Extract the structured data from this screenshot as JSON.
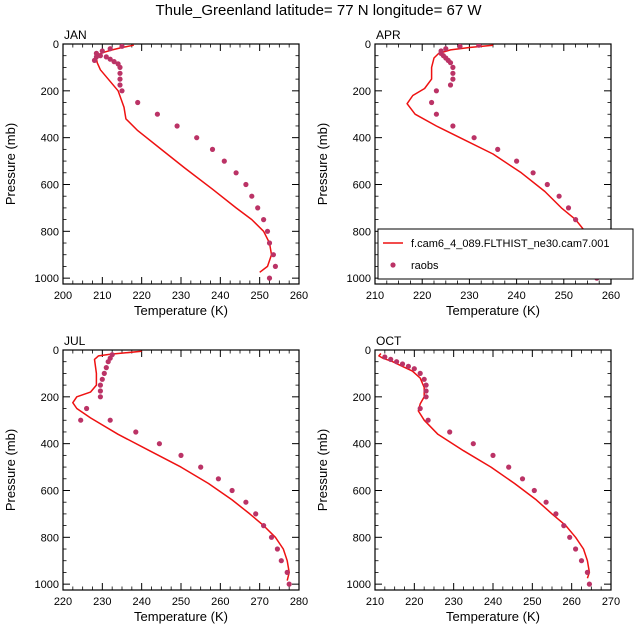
{
  "title": "Thule_Greenland  latitude= 77 N longitude= 67 W",
  "colors": {
    "model": "#ee1111",
    "obs": "#bb3366",
    "axis": "#000000"
  },
  "legend": {
    "panel": "APR",
    "placement": "bottom-right",
    "entries": [
      {
        "label": "f.cam6_4_089.FLTHIST_ne30.cam7.001",
        "kind": "line",
        "color": "#ee1111"
      },
      {
        "label": "raobs",
        "kind": "marker",
        "color": "#bb3366"
      }
    ]
  },
  "chart_data": [
    {
      "type": "line",
      "panel": "JAN",
      "xlabel": "Temperature (K)",
      "ylabel": "Pressure (mb)",
      "xlim": [
        200,
        260
      ],
      "ylim": [
        1025,
        0
      ],
      "xticks": [
        200,
        210,
        220,
        230,
        240,
        250,
        260
      ],
      "yticks": [
        0,
        200,
        400,
        600,
        800,
        1000
      ],
      "grid": false,
      "series": [
        {
          "name": "f.cam6_4_089.FLTHIST_ne30.cam7.001",
          "kind": "line",
          "x": [
            250.0,
            252.0,
            253.0,
            252.5,
            251.0,
            248.0,
            244.0,
            238.0,
            231.0,
            225.0,
            219.0,
            216.0,
            215.5,
            214.0,
            212.5,
            211.0,
            209.5,
            208.7,
            208.5,
            209.0,
            210.5,
            212.5,
            215.0,
            218.0
          ],
          "y": [
            975,
            950,
            900,
            850,
            800,
            750,
            700,
            620,
            530,
            450,
            370,
            320,
            270,
            200,
            170,
            140,
            110,
            80,
            60,
            45,
            35,
            25,
            15,
            5
          ]
        },
        {
          "name": "raobs",
          "kind": "scatter",
          "x": [
            252.5,
            254.0,
            253.5,
            252.5,
            252.0,
            251.0,
            249.5,
            248.0,
            246.5,
            244.0,
            241.0,
            238.0,
            234.0,
            229.0,
            224.0,
            219.0,
            215.0,
            214.5,
            214.5,
            214.5,
            214.5,
            214.0,
            213.0,
            212.0,
            211.0,
            209.5,
            208.5,
            208.0,
            208.5,
            210.0,
            212.0,
            215.0
          ],
          "y": [
            1000,
            950,
            900,
            850,
            800,
            750,
            700,
            650,
            600,
            550,
            500,
            450,
            400,
            350,
            300,
            250,
            200,
            175,
            150,
            125,
            100,
            85,
            75,
            65,
            55,
            50,
            55,
            70,
            40,
            30,
            20,
            10
          ]
        }
      ]
    },
    {
      "type": "line",
      "panel": "APR",
      "xlabel": "Temperature (K)",
      "ylabel": "Pressure (mb)",
      "xlim": [
        210,
        260
      ],
      "ylim": [
        1025,
        0
      ],
      "xticks": [
        210,
        220,
        230,
        240,
        250,
        260
      ],
      "yticks": [
        0,
        200,
        400,
        600,
        800,
        1000
      ],
      "grid": false,
      "series": [
        {
          "name": "f.cam6_4_089.FLTHIST_ne30.cam7.001",
          "kind": "line",
          "x": [
            256.5,
            257.5,
            257.5,
            256.5,
            254.5,
            252.5,
            249.5,
            246.0,
            241.0,
            235.0,
            228.0,
            223.0,
            218.5,
            216.8,
            218.0,
            220.5,
            222.0,
            222.0,
            222.5,
            223.5,
            226.0,
            230.0,
            235.0
          ],
          "y": [
            975,
            950,
            900,
            850,
            800,
            750,
            700,
            630,
            550,
            470,
            400,
            350,
            300,
            255,
            220,
            190,
            150,
            100,
            60,
            40,
            25,
            15,
            5
          ]
        },
        {
          "name": "raobs",
          "kind": "scatter",
          "x": [
            257.0,
            256.5,
            255.5,
            254.0,
            252.5,
            251.0,
            249.0,
            246.5,
            243.5,
            240.0,
            236.0,
            231.0,
            226.5,
            223.0,
            222.0,
            223.0,
            226.0,
            226.5,
            226.5,
            226.5,
            226.0,
            225.5,
            225.0,
            224.5,
            224.0,
            224.0,
            225.0,
            228.0,
            232.0
          ],
          "y": [
            1000,
            900,
            850,
            800,
            750,
            700,
            650,
            600,
            550,
            500,
            450,
            400,
            350,
            300,
            250,
            200,
            175,
            150,
            125,
            100,
            80,
            70,
            60,
            50,
            40,
            30,
            20,
            10,
            5
          ]
        }
      ]
    },
    {
      "type": "line",
      "panel": "JUL",
      "xlabel": "Temperature (K)",
      "ylabel": "Pressure (mb)",
      "xlim": [
        220,
        280
      ],
      "ylim": [
        1025,
        0
      ],
      "xticks": [
        220,
        230,
        240,
        250,
        260,
        270,
        280
      ],
      "yticks": [
        0,
        200,
        400,
        600,
        800,
        1000
      ],
      "grid": false,
      "series": [
        {
          "name": "f.cam6_4_089.FLTHIST_ne30.cam7.001",
          "kind": "line",
          "x": [
            277.0,
            277.5,
            277.0,
            276.0,
            274.0,
            271.0,
            267.5,
            263.0,
            257.0,
            250.0,
            242.0,
            234.0,
            227.0,
            223.5,
            222.5,
            223.5,
            227.0,
            228.5,
            228.5,
            228.0,
            229.0,
            232.0,
            236.0,
            240.0
          ],
          "y": [
            985,
            950,
            900,
            850,
            800,
            750,
            700,
            640,
            570,
            500,
            430,
            360,
            290,
            250,
            225,
            200,
            180,
            150,
            100,
            40,
            25,
            18,
            12,
            5
          ]
        },
        {
          "name": "raobs",
          "kind": "scatter",
          "x": [
            277.5,
            277.0,
            275.5,
            274.5,
            273.0,
            271.0,
            269.0,
            266.5,
            263.0,
            259.5,
            255.0,
            250.0,
            244.5,
            238.5,
            232.0,
            226.0,
            224.5,
            229.5,
            229.5,
            229.5,
            230.0,
            230.5,
            231.0,
            231.5,
            232.0,
            232.5
          ],
          "y": [
            1000,
            950,
            900,
            850,
            800,
            750,
            700,
            650,
            600,
            550,
            500,
            450,
            400,
            350,
            300,
            250,
            300,
            200,
            175,
            150,
            125,
            100,
            75,
            50,
            35,
            20
          ]
        }
      ]
    },
    {
      "type": "line",
      "panel": "OCT",
      "xlabel": "Temperature (K)",
      "ylabel": "Pressure (mb)",
      "xlim": [
        210,
        270
      ],
      "ylim": [
        1025,
        0
      ],
      "xticks": [
        210,
        220,
        230,
        240,
        250,
        260,
        270
      ],
      "yticks": [
        0,
        200,
        400,
        600,
        800,
        1000
      ],
      "grid": false,
      "series": [
        {
          "name": "f.cam6_4_089.FLTHIST_ne30.cam7.001",
          "kind": "line",
          "x": [
            264.0,
            264.5,
            264.0,
            263.0,
            261.0,
            258.5,
            255.0,
            251.0,
            245.5,
            239.5,
            232.5,
            226.0,
            222.5,
            221.0,
            221.5,
            222.5,
            222.5,
            221.5,
            219.5,
            217.0,
            214.5,
            212.0,
            211.0,
            211.5
          ],
          "y": [
            975,
            950,
            900,
            850,
            800,
            750,
            700,
            640,
            570,
            500,
            430,
            360,
            300,
            260,
            230,
            200,
            160,
            120,
            90,
            70,
            50,
            35,
            25,
            15
          ]
        },
        {
          "name": "raobs",
          "kind": "scatter",
          "x": [
            264.5,
            264.0,
            262.5,
            261.0,
            259.5,
            258.0,
            256.0,
            253.5,
            250.5,
            247.5,
            244.0,
            240.0,
            235.0,
            229.0,
            223.5,
            221.5,
            223.0,
            223.0,
            223.0,
            222.5,
            221.5,
            220.0,
            218.5,
            217.0,
            215.5,
            214.0,
            212.5
          ],
          "y": [
            1000,
            950,
            900,
            850,
            800,
            750,
            700,
            650,
            600,
            550,
            500,
            450,
            400,
            350,
            300,
            250,
            200,
            175,
            150,
            125,
            100,
            80,
            70,
            60,
            50,
            40,
            30
          ]
        }
      ]
    }
  ]
}
